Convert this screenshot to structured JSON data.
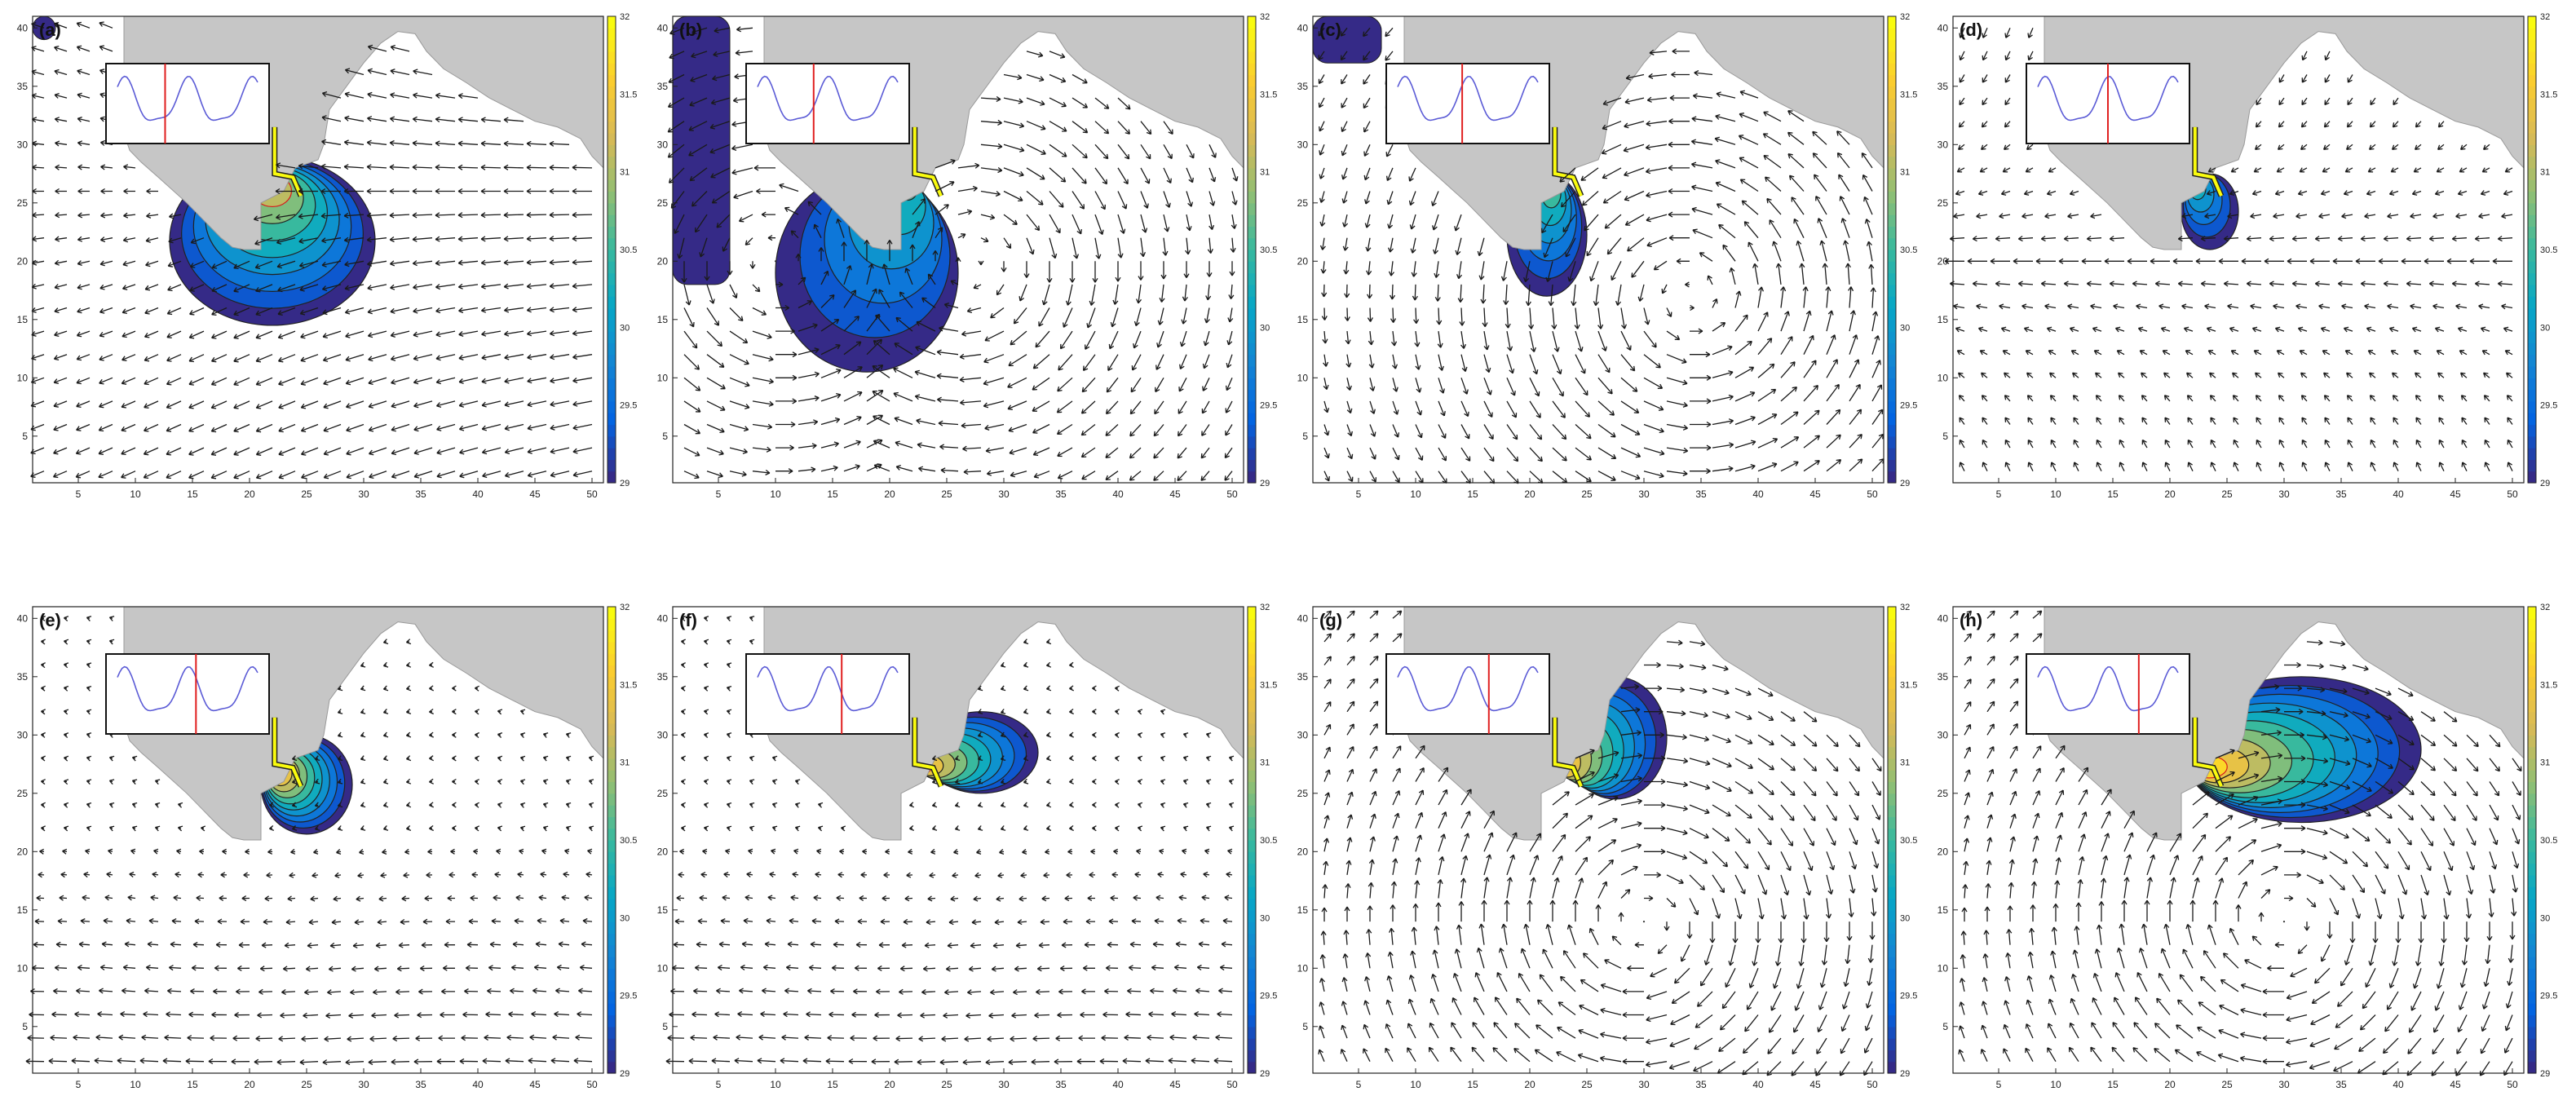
{
  "figure": {
    "panel_count": 8
  },
  "chart_data": [
    {
      "label": "(a)",
      "type": "heatmap",
      "kind": "contour+quiver",
      "x_ticks": [
        5,
        10,
        15,
        20,
        25,
        30,
        35,
        40,
        45,
        50
      ],
      "y_ticks": [
        5,
        10,
        15,
        20,
        25,
        30,
        35,
        40
      ],
      "xlim": [
        1,
        51
      ],
      "ylim": [
        1,
        41
      ],
      "colorbar": {
        "min": 29,
        "max": 32,
        "ticks": [
          "29",
          "29.5",
          "30",
          "30.5",
          "31",
          "31.5",
          "32"
        ]
      },
      "inset_marker_fraction": 0.34,
      "flow": {
        "type": "west_sweep",
        "cx": 20,
        "cy": 26,
        "cw": 1
      },
      "plume": {
        "x_min": 13,
        "x_max": 31,
        "y_min": 14.5,
        "y_max": 29,
        "peak": 31.6
      },
      "extra_low": [
        {
          "x_min": 1,
          "x_max": 3,
          "y_min": 39,
          "y_max": 41
        }
      ]
    },
    {
      "label": "(b)",
      "type": "heatmap",
      "kind": "contour+quiver",
      "x_ticks": [
        5,
        10,
        15,
        20,
        25,
        30,
        35,
        40,
        45,
        50
      ],
      "y_ticks": [
        5,
        10,
        15,
        20,
        25,
        30,
        35,
        40
      ],
      "xlim": [
        1,
        51
      ],
      "ylim": [
        1,
        41
      ],
      "colorbar": {
        "min": 29,
        "max": 32,
        "ticks": [
          "29",
          "29.5",
          "30",
          "30.5",
          "31",
          "31.5",
          "32"
        ]
      },
      "inset_marker_fraction": 0.4,
      "flow": {
        "type": "twin_gyre",
        "cx": 27,
        "cy": 20,
        "cw": 1
      },
      "plume": {
        "x_min": 10,
        "x_max": 26,
        "y_min": 10.5,
        "y_max": 27.5,
        "peak": 30.6
      },
      "extra_low": [
        {
          "x_min": 1,
          "x_max": 6,
          "y_min": 18,
          "y_max": 41
        }
      ]
    },
    {
      "label": "(c)",
      "type": "heatmap",
      "kind": "contour+quiver",
      "x_ticks": [
        5,
        10,
        15,
        20,
        25,
        30,
        35,
        40,
        45,
        50
      ],
      "y_ticks": [
        5,
        10,
        15,
        20,
        25,
        30,
        35,
        40
      ],
      "xlim": [
        1,
        51
      ],
      "ylim": [
        1,
        41
      ],
      "colorbar": {
        "min": 29,
        "max": 32,
        "ticks": [
          "29",
          "29.5",
          "30",
          "30.5",
          "31",
          "31.5",
          "32"
        ]
      },
      "inset_marker_fraction": 0.46,
      "flow": {
        "type": "gyre",
        "cx": 34,
        "cy": 17,
        "cw": 1
      },
      "plume": {
        "x_min": 18,
        "x_max": 25,
        "y_min": 17,
        "y_max": 27.5,
        "peak": 30.8
      },
      "extra_low": [
        {
          "x_min": 1,
          "x_max": 7,
          "y_min": 37,
          "y_max": 41
        }
      ]
    },
    {
      "label": "(d)",
      "type": "heatmap",
      "kind": "contour+quiver",
      "x_ticks": [
        5,
        10,
        15,
        20,
        25,
        30,
        35,
        40,
        45,
        50
      ],
      "y_ticks": [
        5,
        10,
        15,
        20,
        25,
        30,
        35,
        40
      ],
      "xlim": [
        1,
        51
      ],
      "ylim": [
        1,
        41
      ],
      "colorbar": {
        "min": 29,
        "max": 32,
        "ticks": [
          "29",
          "29.5",
          "30",
          "30.5",
          "31",
          "31.5",
          "32"
        ]
      },
      "inset_marker_fraction": 0.5,
      "flow": {
        "type": "west_fan",
        "cx": 30,
        "cy": 20,
        "cw": 1
      },
      "plume": {
        "x_min": 21,
        "x_max": 26,
        "y_min": 21,
        "y_max": 27.5,
        "peak": 30.6
      },
      "extra_low": []
    },
    {
      "label": "(e)",
      "type": "heatmap",
      "kind": "contour+quiver",
      "x_ticks": [
        5,
        10,
        15,
        20,
        25,
        30,
        35,
        40,
        45,
        50
      ],
      "y_ticks": [
        5,
        10,
        15,
        20,
        25,
        30,
        35,
        40
      ],
      "xlim": [
        1,
        51
      ],
      "ylim": [
        1,
        41
      ],
      "colorbar": {
        "min": 29,
        "max": 32,
        "ticks": [
          "29",
          "29.5",
          "30",
          "30.5",
          "31",
          "31.5",
          "32"
        ]
      },
      "inset_marker_fraction": 0.56,
      "flow": {
        "type": "west_bands",
        "cx": 30,
        "cy": 12,
        "cw": 1
      },
      "plume": {
        "x_min": 21,
        "x_max": 29,
        "y_min": 21.5,
        "y_max": 30,
        "peak": 32
      },
      "extra_low": []
    },
    {
      "label": "(f)",
      "type": "heatmap",
      "kind": "contour+quiver",
      "x_ticks": [
        5,
        10,
        15,
        20,
        25,
        30,
        35,
        40,
        45,
        50
      ],
      "y_ticks": [
        5,
        10,
        15,
        20,
        25,
        30,
        35,
        40
      ],
      "xlim": [
        1,
        51
      ],
      "ylim": [
        1,
        41
      ],
      "colorbar": {
        "min": 29,
        "max": 32,
        "ticks": [
          "29",
          "29.5",
          "30",
          "30.5",
          "31",
          "31.5",
          "32"
        ]
      },
      "inset_marker_fraction": 0.6,
      "flow": {
        "type": "west_bands",
        "cx": 30,
        "cy": 12,
        "cw": 1
      },
      "plume": {
        "x_min": 23,
        "x_max": 33,
        "y_min": 25,
        "y_max": 32,
        "peak": 32
      },
      "extra_low": []
    },
    {
      "label": "(g)",
      "type": "heatmap",
      "kind": "contour+quiver",
      "x_ticks": [
        5,
        10,
        15,
        20,
        25,
        30,
        35,
        40,
        45,
        50
      ],
      "y_ticks": [
        5,
        10,
        15,
        20,
        25,
        30,
        35,
        40
      ],
      "xlim": [
        1,
        51
      ],
      "ylim": [
        1,
        41
      ],
      "colorbar": {
        "min": 29,
        "max": 32,
        "ticks": [
          "29",
          "29.5",
          "30",
          "30.5",
          "31",
          "31.5",
          "32"
        ]
      },
      "inset_marker_fraction": 0.65,
      "flow": {
        "type": "gyre",
        "cx": 30,
        "cy": 14,
        "cw": -1
      },
      "plume": {
        "x_min": 23,
        "x_max": 32,
        "y_min": 24.5,
        "y_max": 35,
        "peak": 32
      },
      "extra_low": []
    },
    {
      "label": "(h)",
      "type": "heatmap",
      "kind": "contour+quiver",
      "x_ticks": [
        5,
        10,
        15,
        20,
        25,
        30,
        35,
        40,
        45,
        50
      ],
      "y_ticks": [
        5,
        10,
        15,
        20,
        25,
        30,
        35,
        40
      ],
      "xlim": [
        1,
        51
      ],
      "ylim": [
        1,
        41
      ],
      "colorbar": {
        "min": 29,
        "max": 32,
        "ticks": [
          "29",
          "29.5",
          "30",
          "30.5",
          "31",
          "31.5",
          "32"
        ]
      },
      "inset_marker_fraction": 0.72,
      "flow": {
        "type": "gyre",
        "cx": 30,
        "cy": 14,
        "cw": -1
      },
      "plume": {
        "x_min": 21,
        "x_max": 42,
        "y_min": 22.5,
        "y_max": 35,
        "peak": 32
      },
      "extra_low": []
    }
  ]
}
